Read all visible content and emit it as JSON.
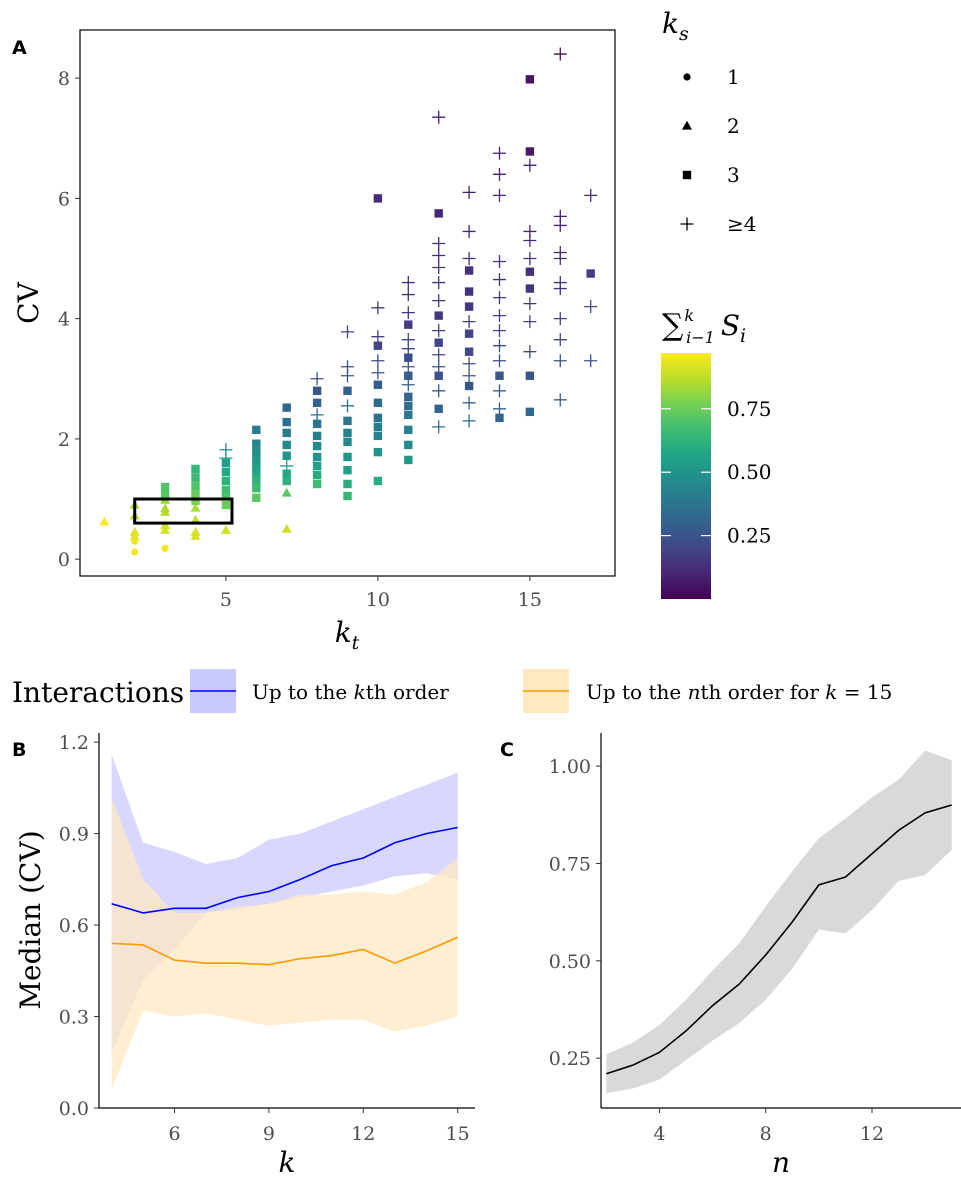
{
  "panels": {
    "a": "A",
    "b": "B",
    "c": "C"
  },
  "colors": {
    "blue": "#0000ff",
    "orange": "#ff9900",
    "blue_fill": "#c9c9ff",
    "orange_fill": "#ffe8c2",
    "gray_fill": "#d9d9d9",
    "black": "#000000"
  },
  "shape_legend": {
    "title": "k",
    "title_sub": "s",
    "items": [
      {
        "shape": "circle",
        "label": "1"
      },
      {
        "shape": "triangle",
        "label": "2"
      },
      {
        "shape": "square",
        "label": "3"
      },
      {
        "shape": "plus",
        "label": "≥4"
      }
    ]
  },
  "colorbar": {
    "title_sum": "∑",
    "title_sup": "k",
    "title_sub": "i−1",
    "title_var": "S",
    "title_var_sub": "i",
    "ticks": [
      "0.75",
      "0.50",
      "0.25"
    ],
    "tick_values": [
      0.75,
      0.5,
      0.25
    ],
    "range": [
      0.0,
      0.97
    ],
    "palette": "viridis"
  },
  "interactions_legend": {
    "title": "Interactions",
    "items": [
      {
        "label_pre": "Up to the ",
        "label_var": "k",
        "label_post": "th order",
        "color": "#0000ff",
        "fill": "#c9c9ff"
      },
      {
        "label_pre": "Up to the ",
        "label_var": "n",
        "label_post": "th order for ",
        "label_var2": "k",
        "label_eq": " = 15",
        "color": "#ff9900",
        "fill": "#ffe8c2"
      }
    ]
  },
  "chart_data": [
    {
      "panel": "A",
      "type": "scatter",
      "xlabel": "k",
      "xlabel_sub": "t",
      "ylabel": "CV",
      "xlim": [
        0.2,
        17.8
      ],
      "ylim": [
        -0.28,
        8.8
      ],
      "xticks": [
        5,
        10,
        15
      ],
      "yticks": [
        0,
        2,
        4,
        6,
        8
      ],
      "grid": false,
      "highlight_box": {
        "x": [
          2,
          5.2
        ],
        "y": [
          0.6,
          1.0
        ]
      },
      "points": [
        [
          1,
          0.62,
          2,
          0.97
        ],
        [
          2,
          0.12,
          1,
          0.96
        ],
        [
          2,
          0.3,
          1,
          0.95
        ],
        [
          2,
          0.38,
          2,
          0.93
        ],
        [
          2,
          0.45,
          2,
          0.92
        ],
        [
          2,
          0.72,
          2,
          0.86
        ],
        [
          2,
          0.9,
          2,
          0.85
        ],
        [
          3,
          0.18,
          1,
          0.95
        ],
        [
          3,
          0.48,
          2,
          0.91
        ],
        [
          3,
          0.56,
          2,
          0.9
        ],
        [
          3,
          0.78,
          2,
          0.86
        ],
        [
          3,
          0.84,
          2,
          0.85
        ],
        [
          3,
          0.98,
          2,
          0.83
        ],
        [
          3,
          1.08,
          3,
          0.72
        ],
        [
          3,
          1.2,
          3,
          0.7
        ],
        [
          4,
          0.38,
          2,
          0.92
        ],
        [
          4,
          0.45,
          2,
          0.91
        ],
        [
          4,
          0.65,
          2,
          0.87
        ],
        [
          4,
          0.85,
          2,
          0.84
        ],
        [
          4,
          0.97,
          3,
          0.78
        ],
        [
          4,
          1.1,
          3,
          0.74
        ],
        [
          4,
          1.22,
          3,
          0.7
        ],
        [
          4,
          1.36,
          3,
          0.66
        ],
        [
          4,
          1.5,
          3,
          0.64
        ],
        [
          5,
          0.48,
          2,
          0.9
        ],
        [
          5,
          0.9,
          3,
          0.75
        ],
        [
          5,
          1.05,
          3,
          0.7
        ],
        [
          5,
          1.15,
          3,
          0.67
        ],
        [
          5,
          1.3,
          3,
          0.62
        ],
        [
          5,
          1.45,
          3,
          0.58
        ],
        [
          5,
          1.6,
          3,
          0.55
        ],
        [
          5,
          1.68,
          4,
          0.5
        ],
        [
          5,
          1.82,
          4,
          0.46
        ],
        [
          6,
          1.02,
          3,
          0.72
        ],
        [
          6,
          1.18,
          3,
          0.66
        ],
        [
          6,
          1.32,
          3,
          0.62
        ],
        [
          6,
          1.45,
          3,
          0.58
        ],
        [
          6,
          1.55,
          3,
          0.55
        ],
        [
          6,
          1.65,
          3,
          0.52
        ],
        [
          6,
          1.78,
          3,
          0.48
        ],
        [
          6,
          1.92,
          3,
          0.44
        ],
        [
          6,
          2.15,
          3,
          0.4
        ],
        [
          7,
          0.5,
          2,
          0.9
        ],
        [
          7,
          1.1,
          2,
          0.72
        ],
        [
          7,
          1.3,
          3,
          0.62
        ],
        [
          7,
          1.42,
          3,
          0.58
        ],
        [
          7,
          1.55,
          4,
          0.54
        ],
        [
          7,
          1.72,
          3,
          0.5
        ],
        [
          7,
          1.9,
          3,
          0.45
        ],
        [
          7,
          2.1,
          3,
          0.4
        ],
        [
          7,
          2.28,
          3,
          0.36
        ],
        [
          7,
          2.52,
          3,
          0.32
        ],
        [
          8,
          1.25,
          3,
          0.66
        ],
        [
          8,
          1.4,
          3,
          0.6
        ],
        [
          8,
          1.55,
          3,
          0.55
        ],
        [
          8,
          1.7,
          3,
          0.5
        ],
        [
          8,
          1.88,
          3,
          0.46
        ],
        [
          8,
          2.05,
          3,
          0.42
        ],
        [
          8,
          2.25,
          3,
          0.38
        ],
        [
          8,
          2.4,
          4,
          0.34
        ],
        [
          8,
          2.6,
          3,
          0.3
        ],
        [
          8,
          2.8,
          3,
          0.26
        ],
        [
          8,
          3.0,
          4,
          0.24
        ],
        [
          9,
          1.05,
          3,
          0.64
        ],
        [
          9,
          1.25,
          3,
          0.6
        ],
        [
          9,
          1.48,
          3,
          0.55
        ],
        [
          9,
          1.7,
          3,
          0.5
        ],
        [
          9,
          1.95,
          3,
          0.45
        ],
        [
          9,
          2.1,
          3,
          0.42
        ],
        [
          9,
          2.3,
          3,
          0.38
        ],
        [
          9,
          2.55,
          4,
          0.34
        ],
        [
          9,
          2.8,
          3,
          0.3
        ],
        [
          9,
          3.05,
          4,
          0.26
        ],
        [
          9,
          3.2,
          4,
          0.24
        ],
        [
          9,
          3.78,
          4,
          0.2
        ],
        [
          10,
          1.3,
          3,
          0.6
        ],
        [
          10,
          1.78,
          3,
          0.5
        ],
        [
          10,
          2.05,
          3,
          0.42
        ],
        [
          10,
          2.2,
          3,
          0.4
        ],
        [
          10,
          2.35,
          3,
          0.37
        ],
        [
          10,
          2.6,
          3,
          0.33
        ],
        [
          10,
          2.9,
          3,
          0.28
        ],
        [
          10,
          3.1,
          4,
          0.25
        ],
        [
          10,
          3.3,
          4,
          0.22
        ],
        [
          10,
          3.55,
          3,
          0.2
        ],
        [
          10,
          3.7,
          4,
          0.18
        ],
        [
          10,
          4.18,
          4,
          0.15
        ],
        [
          10,
          6.0,
          3,
          0.12
        ],
        [
          11,
          1.65,
          3,
          0.52
        ],
        [
          11,
          1.9,
          3,
          0.46
        ],
        [
          11,
          2.15,
          3,
          0.42
        ],
        [
          11,
          2.4,
          3,
          0.38
        ],
        [
          11,
          2.55,
          3,
          0.35
        ],
        [
          11,
          2.7,
          3,
          0.32
        ],
        [
          11,
          2.9,
          4,
          0.3
        ],
        [
          11,
          3.05,
          3,
          0.28
        ],
        [
          11,
          3.2,
          4,
          0.25
        ],
        [
          11,
          3.35,
          3,
          0.23
        ],
        [
          11,
          3.5,
          4,
          0.22
        ],
        [
          11,
          3.65,
          4,
          0.2
        ],
        [
          11,
          3.9,
          3,
          0.17
        ],
        [
          11,
          4.1,
          4,
          0.16
        ],
        [
          11,
          4.4,
          4,
          0.14
        ],
        [
          11,
          4.6,
          4,
          0.13
        ],
        [
          12,
          2.2,
          4,
          0.35
        ],
        [
          12,
          2.5,
          3,
          0.3
        ],
        [
          12,
          2.8,
          4,
          0.27
        ],
        [
          12,
          3.05,
          3,
          0.25
        ],
        [
          12,
          3.2,
          4,
          0.23
        ],
        [
          12,
          3.4,
          4,
          0.22
        ],
        [
          12,
          3.6,
          3,
          0.2
        ],
        [
          12,
          3.8,
          4,
          0.18
        ],
        [
          12,
          4.05,
          3,
          0.16
        ],
        [
          12,
          4.3,
          4,
          0.15
        ],
        [
          12,
          4.6,
          4,
          0.14
        ],
        [
          12,
          4.85,
          4,
          0.13
        ],
        [
          12,
          5.05,
          4,
          0.12
        ],
        [
          12,
          5.25,
          4,
          0.11
        ],
        [
          12,
          5.75,
          3,
          0.1
        ],
        [
          12,
          7.35,
          4,
          0.07
        ],
        [
          13,
          2.3,
          4,
          0.33
        ],
        [
          13,
          2.6,
          4,
          0.3
        ],
        [
          13,
          2.88,
          3,
          0.26
        ],
        [
          13,
          3.05,
          4,
          0.25
        ],
        [
          13,
          3.25,
          4,
          0.23
        ],
        [
          13,
          3.45,
          3,
          0.21
        ],
        [
          13,
          3.75,
          3,
          0.19
        ],
        [
          13,
          3.95,
          4,
          0.17
        ],
        [
          13,
          4.2,
          3,
          0.15
        ],
        [
          13,
          4.45,
          3,
          0.14
        ],
        [
          13,
          4.8,
          3,
          0.13
        ],
        [
          13,
          5.0,
          4,
          0.12
        ],
        [
          13,
          5.45,
          4,
          0.1
        ],
        [
          13,
          6.1,
          4,
          0.08
        ],
        [
          14,
          2.35,
          3,
          0.32
        ],
        [
          14,
          2.5,
          4,
          0.3
        ],
        [
          14,
          2.8,
          4,
          0.28
        ],
        [
          14,
          3.05,
          3,
          0.26
        ],
        [
          14,
          3.3,
          4,
          0.24
        ],
        [
          14,
          3.55,
          4,
          0.22
        ],
        [
          14,
          3.8,
          4,
          0.2
        ],
        [
          14,
          4.05,
          4,
          0.18
        ],
        [
          14,
          4.35,
          4,
          0.16
        ],
        [
          14,
          4.65,
          4,
          0.14
        ],
        [
          14,
          4.95,
          4,
          0.13
        ],
        [
          14,
          6.05,
          4,
          0.1
        ],
        [
          14,
          6.4,
          4,
          0.09
        ],
        [
          14,
          6.75,
          4,
          0.08
        ],
        [
          15,
          2.45,
          3,
          0.32
        ],
        [
          15,
          3.05,
          3,
          0.26
        ],
        [
          15,
          3.45,
          4,
          0.22
        ],
        [
          15,
          3.95,
          4,
          0.18
        ],
        [
          15,
          4.25,
          4,
          0.16
        ],
        [
          15,
          4.5,
          3,
          0.15
        ],
        [
          15,
          4.78,
          3,
          0.13
        ],
        [
          15,
          5.0,
          4,
          0.12
        ],
        [
          15,
          5.3,
          4,
          0.11
        ],
        [
          15,
          5.45,
          4,
          0.1
        ],
        [
          15,
          6.55,
          4,
          0.08
        ],
        [
          15,
          6.78,
          3,
          0.07
        ],
        [
          15,
          7.98,
          3,
          0.05
        ],
        [
          16,
          2.65,
          4,
          0.3
        ],
        [
          16,
          3.3,
          4,
          0.25
        ],
        [
          16,
          3.65,
          4,
          0.22
        ],
        [
          16,
          4.0,
          4,
          0.19
        ],
        [
          16,
          4.5,
          4,
          0.15
        ],
        [
          16,
          4.6,
          4,
          0.14
        ],
        [
          16,
          5.0,
          4,
          0.12
        ],
        [
          16,
          5.1,
          4,
          0.11
        ],
        [
          16,
          5.55,
          4,
          0.09
        ],
        [
          16,
          5.7,
          4,
          0.08
        ],
        [
          16,
          8.4,
          4,
          0.04
        ],
        [
          17,
          3.3,
          4,
          0.26
        ],
        [
          17,
          4.2,
          4,
          0.2
        ],
        [
          17,
          4.75,
          3,
          0.17
        ],
        [
          17,
          6.05,
          4,
          0.1
        ]
      ]
    },
    {
      "panel": "B",
      "type": "line",
      "xlabel": "k",
      "ylabel": "Median (CV)",
      "xlim": [
        3.6,
        15.55
      ],
      "ylim": [
        0,
        1.23
      ],
      "xticks": [
        6,
        9,
        12,
        15
      ],
      "yticks": [
        0.0,
        0.3,
        0.6,
        0.9,
        1.2
      ],
      "ytick_labels": [
        "0.0",
        "0.3",
        "0.6",
        "0.9",
        "1.2"
      ],
      "x": [
        4,
        5,
        6,
        7,
        8,
        9,
        10,
        11,
        12,
        13,
        14,
        15
      ],
      "series": [
        {
          "color": "#0000ff",
          "fill": "#c9c9ff",
          "values": [
            0.67,
            0.64,
            0.655,
            0.655,
            0.69,
            0.71,
            0.75,
            0.795,
            0.82,
            0.87,
            0.9,
            0.92
          ],
          "lower": [
            0.18,
            0.42,
            0.52,
            0.64,
            0.65,
            0.67,
            0.69,
            0.71,
            0.73,
            0.76,
            0.77,
            0.75
          ],
          "upper": [
            1.16,
            0.87,
            0.84,
            0.8,
            0.82,
            0.88,
            0.9,
            0.94,
            0.98,
            1.02,
            1.06,
            1.1
          ]
        },
        {
          "color": "#ff9900",
          "fill": "#ffe8c2",
          "values": [
            0.54,
            0.535,
            0.485,
            0.475,
            0.475,
            0.47,
            0.49,
            0.5,
            0.52,
            0.475,
            0.515,
            0.56
          ],
          "lower": [
            0.06,
            0.32,
            0.3,
            0.31,
            0.29,
            0.27,
            0.28,
            0.29,
            0.29,
            0.25,
            0.27,
            0.3
          ],
          "upper": [
            1.02,
            0.75,
            0.64,
            0.64,
            0.66,
            0.67,
            0.7,
            0.7,
            0.71,
            0.7,
            0.74,
            0.82
          ]
        }
      ]
    },
    {
      "panel": "C",
      "type": "line",
      "xlabel": "n",
      "ylabel": "",
      "xlim": [
        1.8,
        15.35
      ],
      "ylim": [
        0.122,
        1.085
      ],
      "xticks": [
        4,
        8,
        12
      ],
      "yticks": [
        0.25,
        0.5,
        0.75,
        1.0
      ],
      "ytick_labels": [
        "0.25",
        "0.50",
        "0.75",
        "1.00"
      ],
      "x": [
        2,
        3,
        4,
        5,
        6,
        7,
        8,
        9,
        10,
        11,
        12,
        13,
        14,
        15
      ],
      "series": [
        {
          "color": "#000000",
          "fill": "#d9d9d9",
          "values": [
            0.21,
            0.232,
            0.265,
            0.32,
            0.385,
            0.44,
            0.515,
            0.6,
            0.695,
            0.715,
            0.775,
            0.835,
            0.88,
            0.9
          ],
          "lower": [
            0.16,
            0.172,
            0.195,
            0.245,
            0.295,
            0.34,
            0.4,
            0.48,
            0.58,
            0.57,
            0.63,
            0.705,
            0.72,
            0.785
          ],
          "upper": [
            0.26,
            0.29,
            0.335,
            0.4,
            0.475,
            0.545,
            0.64,
            0.73,
            0.815,
            0.865,
            0.92,
            0.965,
            1.04,
            1.015
          ]
        }
      ]
    }
  ]
}
